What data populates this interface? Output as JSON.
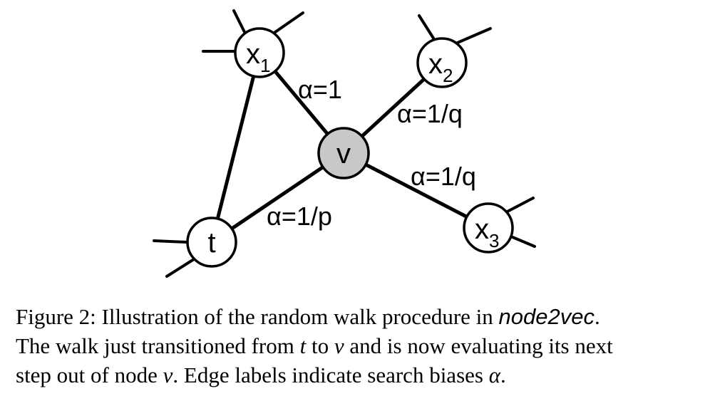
{
  "diagram": {
    "nodes": {
      "x1": {
        "base": "x",
        "sub": "1"
      },
      "x2": {
        "base": "x",
        "sub": "2"
      },
      "x3": {
        "base": "x",
        "sub": "3"
      },
      "v": {
        "label": "v",
        "fill": "#c8c8c8"
      },
      "t": {
        "label": "t"
      }
    },
    "edge_labels": {
      "v_x1": "α=1",
      "v_x2": "α=1/q",
      "v_x3": "α=1/q",
      "v_t": "α=1/p"
    }
  },
  "caption": {
    "line1_prefix": "Figure 2: Illustration of the random walk procedure in ",
    "line1_method": "node2vec",
    "line1_end": ".",
    "line2_a": "The walk just transitioned from ",
    "line2_t": "t",
    "line2_b": " to ",
    "line2_v": "v",
    "line2_c": " and is now evaluating its next",
    "line3_a": "step out of node ",
    "line3_v": "v",
    "line3_b": ". Edge labels indicate search biases ",
    "line3_alpha": "α",
    "line3_end": "."
  }
}
